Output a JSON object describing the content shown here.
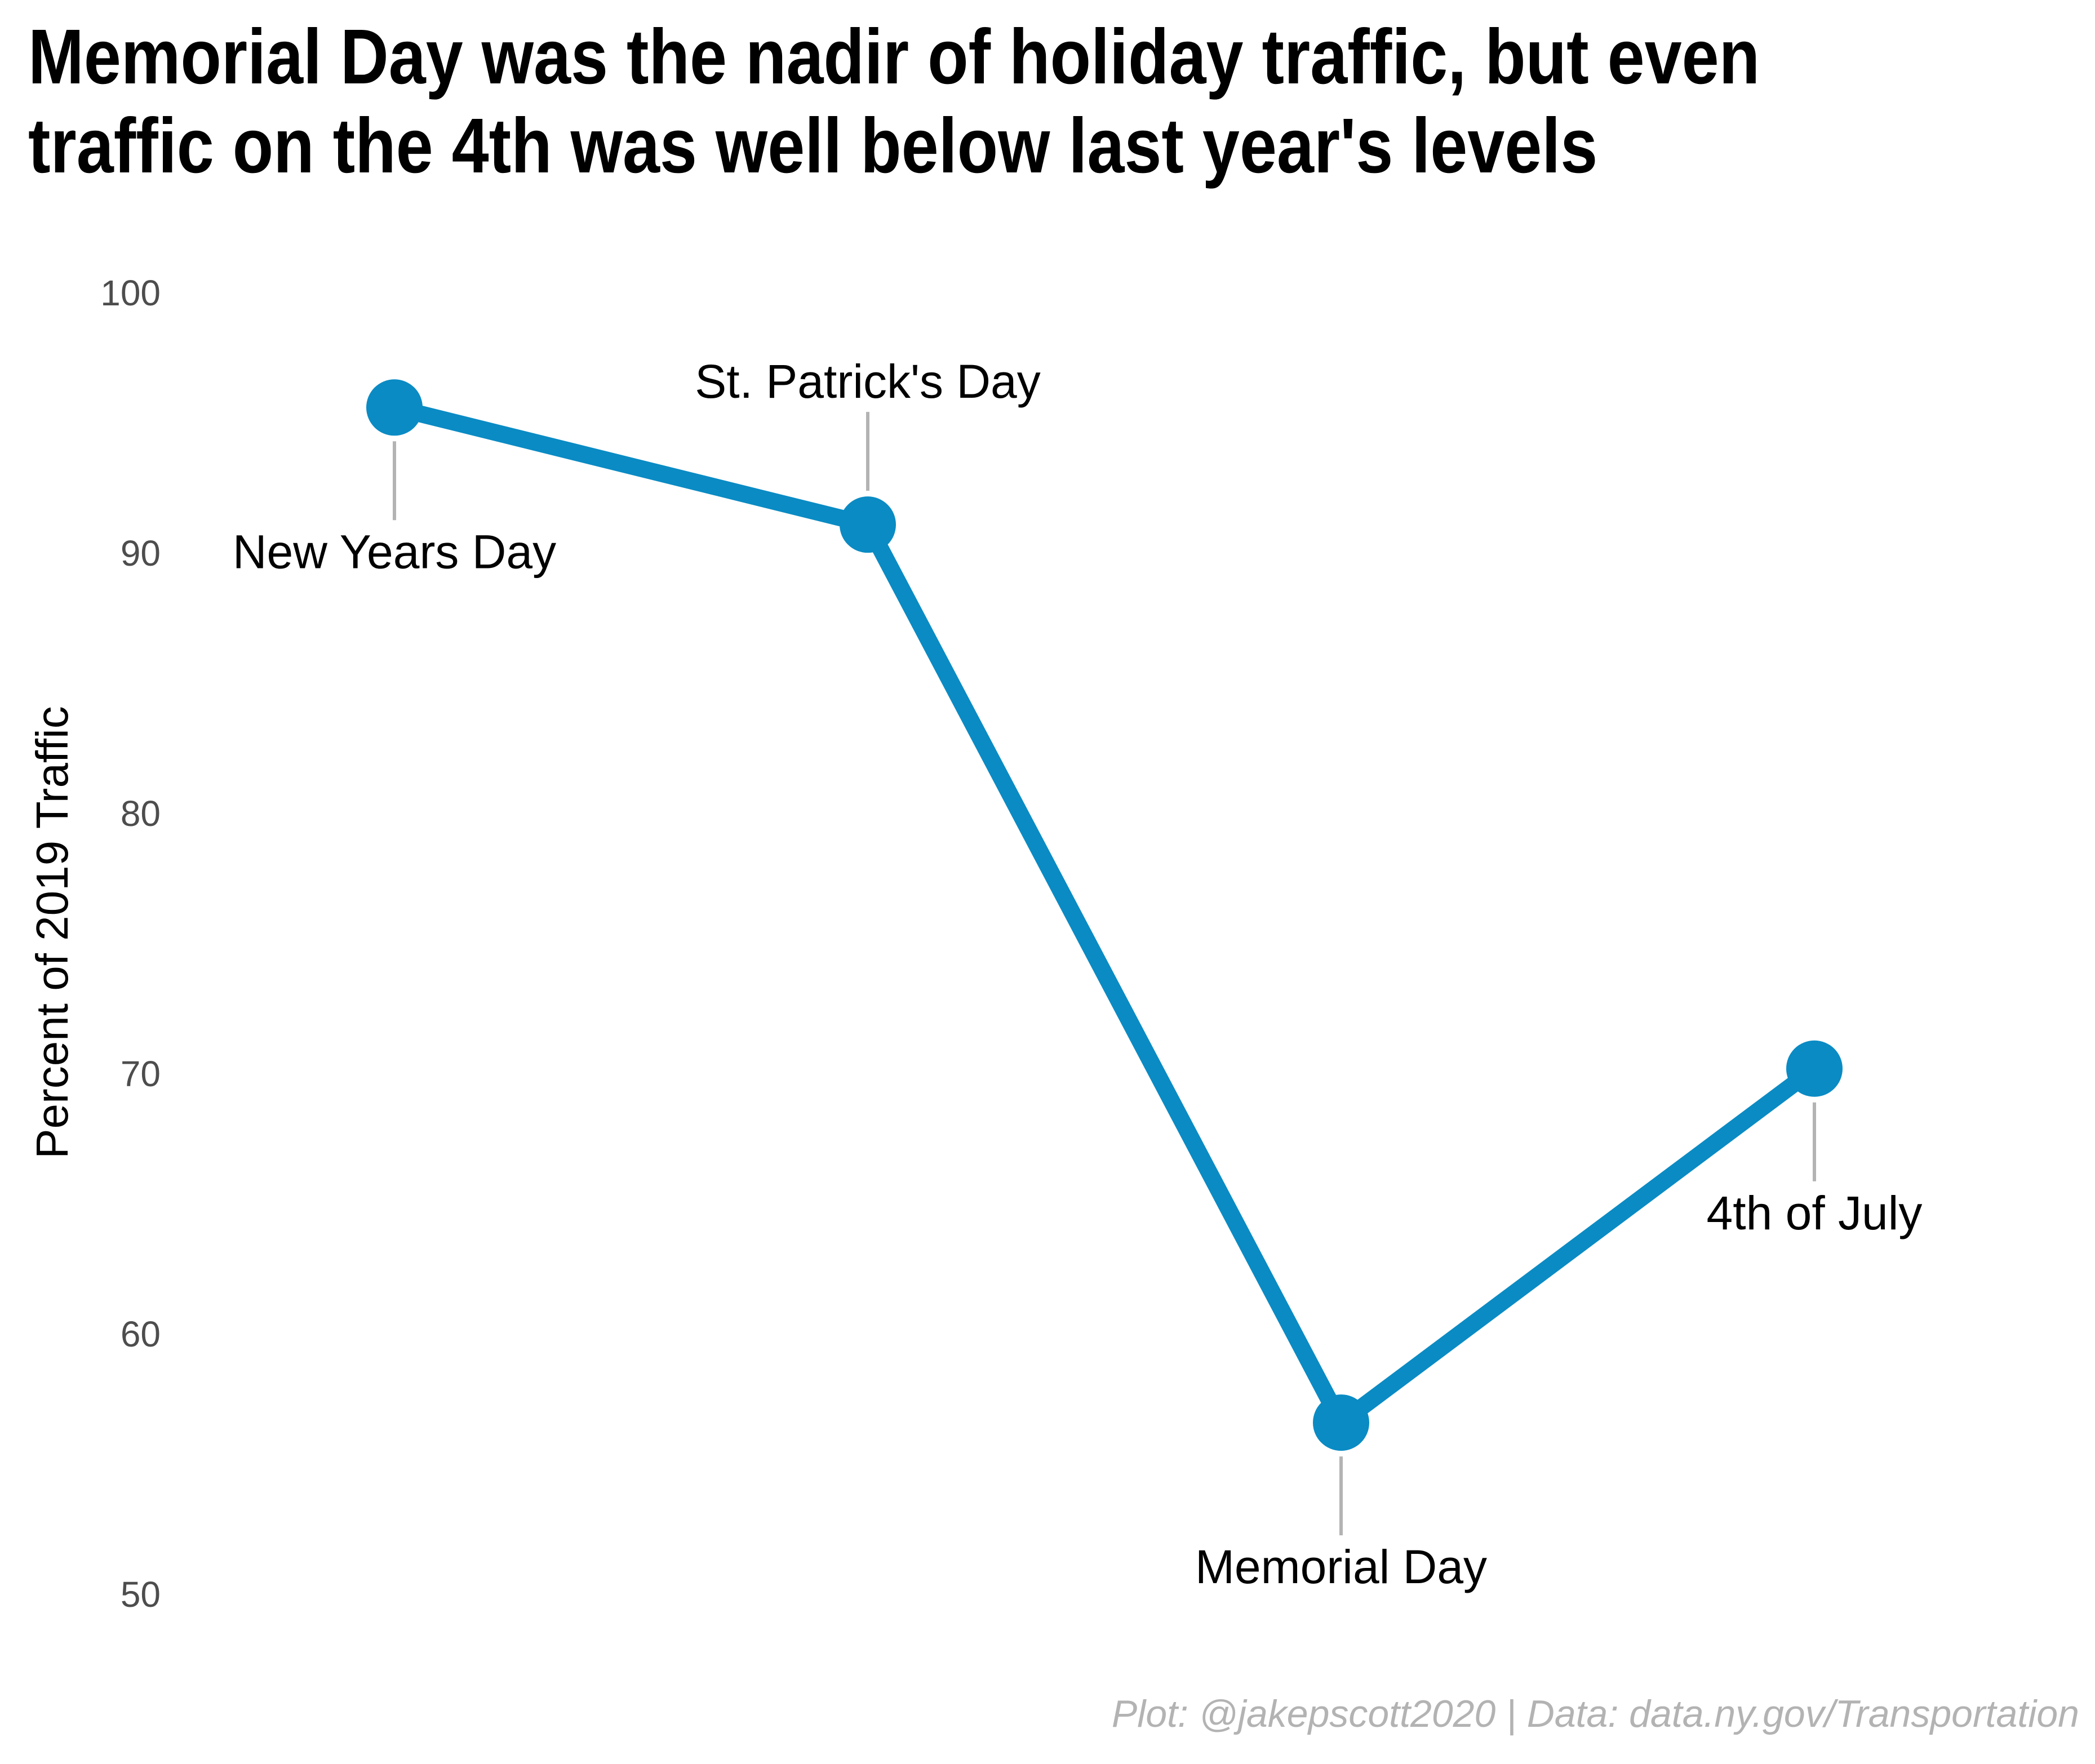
{
  "chart_data": {
    "type": "line",
    "title_lines": [
      "Memorial Day was the nadir of holiday traffic, but even",
      "traffic on the 4th was well below last year's levels"
    ],
    "xlabel": "",
    "ylabel": "Percent of 2019 Traffic",
    "ylim": [
      50,
      100
    ],
    "yticks": [
      50,
      60,
      70,
      80,
      90,
      100
    ],
    "grid": false,
    "legend": "none",
    "categories": [
      "New Years Day",
      "St. Patrick's Day",
      "Memorial Day",
      "4th of July"
    ],
    "values": [
      95.6,
      91.1,
      56.6,
      70.2
    ],
    "label_side": [
      "below",
      "above",
      "below",
      "below"
    ],
    "line_color": "#0a8bc4",
    "leader_color": "#b3b3b3",
    "caption": "Plot: @jakepscott2020 | Data: data.ny.gov/Transportation"
  }
}
